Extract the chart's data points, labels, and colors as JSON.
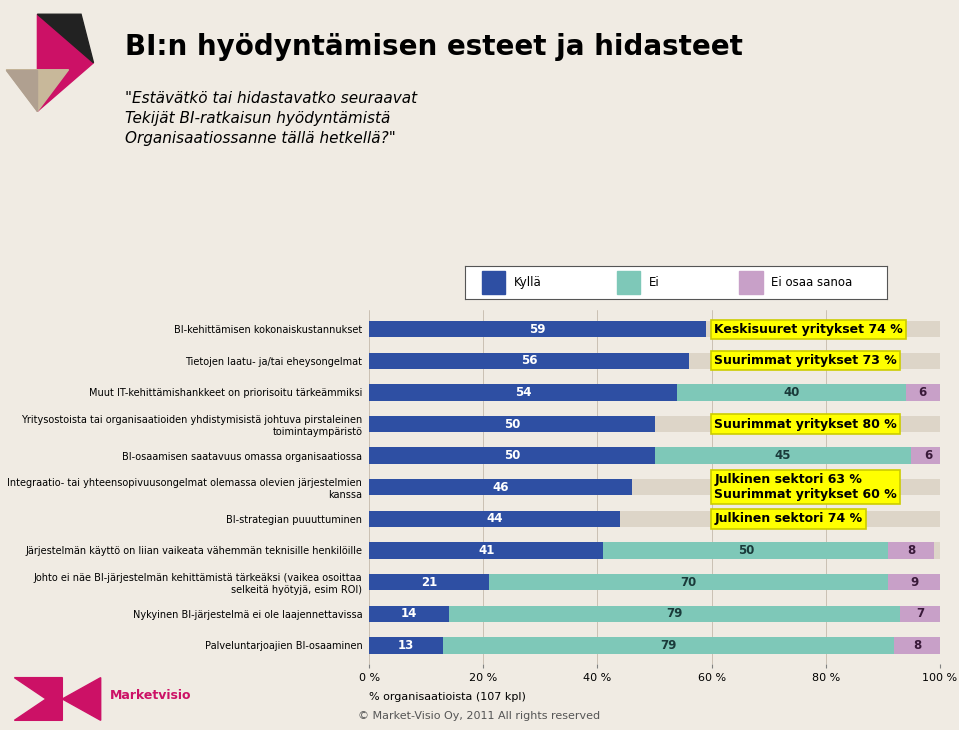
{
  "title": "BI:n hyödyntämisen esteet ja hidasteet",
  "subtitle": "\"Estävätkö tai hidastavatko seuraavat\nTekijät BI-ratkaisun hyödyntämistä\nOrganisaatiossanne tällä hetkellä?\"",
  "categories": [
    "BI-kehittämisen kokonaiskustannukset",
    "Tietojen laatu- ja/tai eheysongelmat",
    "Muut IT-kehittämishankkeet on priorisoitu tärkeämmiksi",
    "Yritysostoista tai organisaatioiden yhdistymisistä johtuva pirstaleinen\ntoimintaympäristö",
    "BI-osaamisen saatavuus omassa organisaatiossa",
    "Integraatio- tai yhteensopivuusongelmat olemassa olevien järjestelmien\nkanssa",
    "BI-strategian puuuttuminen",
    "Järjestelmän käyttö on liian vaikeata vähemmän teknisille henkilöille",
    "Johto ei näe BI-järjestelmän kehittämistä tärkeäksi (vaikea osoittaa\nselkeitä hyötyjä, esim ROI)",
    "Nykyinen BI-järjestelmä ei ole laajennettavissa",
    "Palveluntarjoajien BI-osaaminen"
  ],
  "kyla_values": [
    59,
    56,
    54,
    50,
    50,
    46,
    44,
    41,
    21,
    14,
    13
  ],
  "ei_values": [
    0,
    0,
    40,
    0,
    45,
    0,
    0,
    50,
    70,
    79,
    79
  ],
  "eos_values": [
    0,
    0,
    6,
    0,
    6,
    0,
    0,
    8,
    9,
    7,
    8
  ],
  "annotations": [
    {
      "row": 0,
      "text": "Keskisuuret yritykset 74 %"
    },
    {
      "row": 1,
      "text": "Suurimmat yritykset 73 %"
    },
    {
      "row": 3,
      "text": "Suurimmat yritykset 80 %"
    },
    {
      "row": 5,
      "text": "Julkinen sektori 63 %\nSuurimmat yritykset 60 %"
    },
    {
      "row": 6,
      "text": "Julkinen sektori 74 %"
    }
  ],
  "bar_color_kyla": "#2E4FA3",
  "bar_color_ei": "#7EC8B8",
  "bar_color_eos": "#C8A0C8",
  "bar_bg_color": "#DDD5C8",
  "legend_labels": [
    "Kyllä",
    "Ei",
    "Ei osaa sanoa"
  ],
  "xlabel": "% organisaatioista (107 kpl)",
  "xtick_labels": [
    "0 %",
    "20 %",
    "40 %",
    "60 %",
    "80 %",
    "100 %"
  ],
  "xtick_values": [
    0,
    20,
    40,
    60,
    80,
    100
  ],
  "footer": "© Market-Visio Oy, 2011 All rights reserved",
  "fig_bg": "#F0EBE3"
}
